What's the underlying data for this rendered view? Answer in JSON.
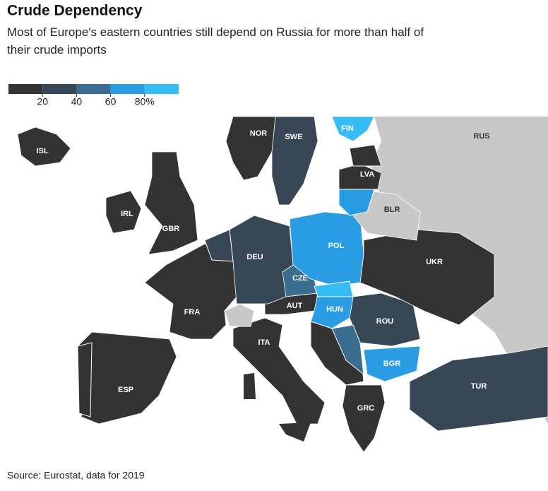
{
  "header": {
    "title": "Crude Dependency",
    "subtitle": "Most of Europe's eastern countries still depend on Russia for more than half of their crude imports"
  },
  "legend": {
    "range": [
      0,
      100
    ],
    "colors": [
      "#333333",
      "#384756",
      "#3a6d90",
      "#2a9ce4",
      "#37bdf6"
    ],
    "ticks": [
      20,
      40,
      60,
      {
        "value": 80,
        "label": "80%"
      }
    ]
  },
  "countries": [
    {
      "label": "ISL",
      "color": "#333333"
    },
    {
      "label": "NOR",
      "color": "#333333"
    },
    {
      "label": "SWE",
      "color": "#384756"
    },
    {
      "label": "FIN",
      "color": "#37bdf6"
    },
    {
      "label": "RUS",
      "color": "#c8c8c8"
    },
    {
      "label": "LVA",
      "color": "#333333"
    },
    {
      "label": "BLR",
      "color": "#c8c8c8"
    },
    {
      "label": "IRL",
      "color": "#333333"
    },
    {
      "label": "GBR",
      "color": "#333333"
    },
    {
      "label": "DEU",
      "color": "#384756"
    },
    {
      "label": "POL",
      "color": "#2a9ce4"
    },
    {
      "label": "UKR",
      "color": "#333333"
    },
    {
      "label": "CZE",
      "color": "#3a6d90"
    },
    {
      "label": "FRA",
      "color": "#333333"
    },
    {
      "label": "AUT",
      "color": "#333333"
    },
    {
      "label": "HUN",
      "color": "#2a9ce4"
    },
    {
      "label": "ROU",
      "color": "#384756"
    },
    {
      "label": "ITA",
      "color": "#333333"
    },
    {
      "label": "BGR",
      "color": "#2a9ce4"
    },
    {
      "label": "ESP",
      "color": "#333333"
    },
    {
      "label": "TUR",
      "color": "#384756"
    },
    {
      "label": "GRC",
      "color": "#333333"
    }
  ],
  "footer": {
    "source": "Source: Eurostat, data for 2019"
  }
}
